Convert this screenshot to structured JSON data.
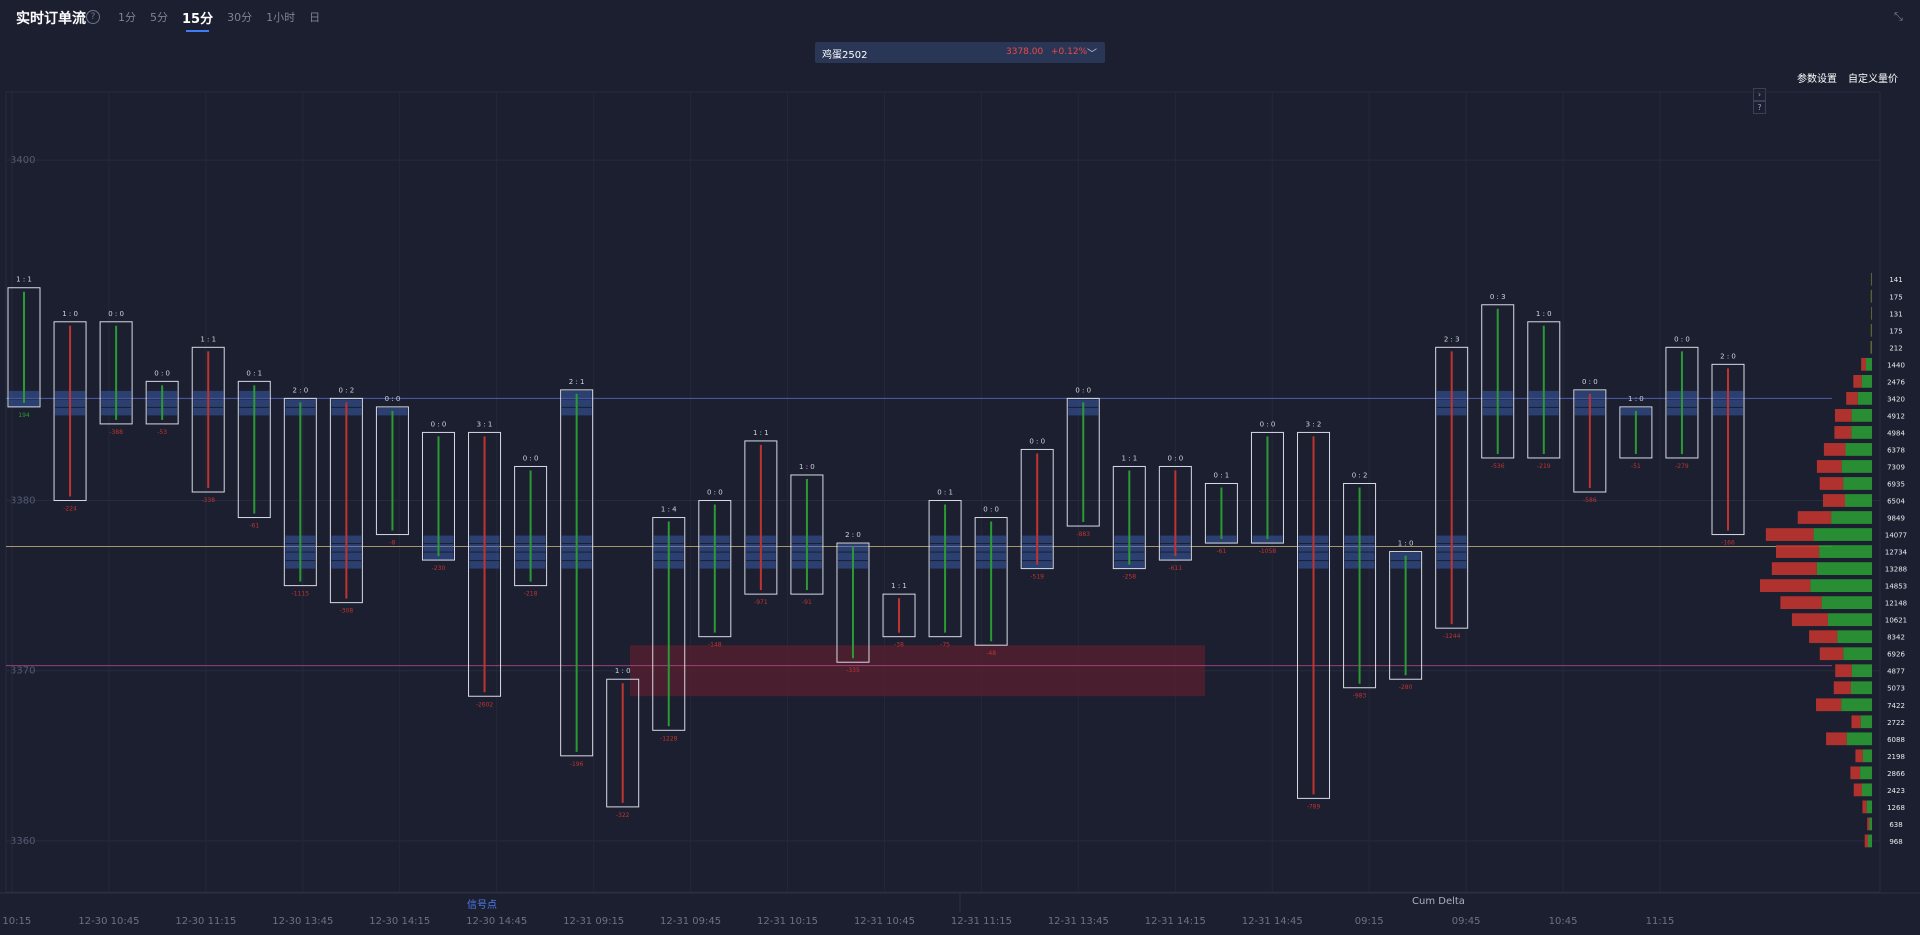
{
  "header": {
    "title": "实时订单流",
    "help_icon": "help-circle-icon",
    "tabs": [
      {
        "label": "1分",
        "active": false
      },
      {
        "label": "5分",
        "active": false
      },
      {
        "label": "15分",
        "active": true
      },
      {
        "label": "30分",
        "active": false
      },
      {
        "label": "1小时",
        "active": false
      },
      {
        "label": "日",
        "active": false
      }
    ],
    "collapse_icon": "collapse-icon"
  },
  "symbol": {
    "name": "鸡蛋2502",
    "price": "3378.00",
    "change": "+0.12%",
    "chevron_icon": "chevron-down-icon"
  },
  "toolbar": {
    "settings_label": "参数设置",
    "custom_label": "自定义量价"
  },
  "bottom_tabs": {
    "signal": "信号点",
    "cum_delta": "Cum Delta"
  },
  "colors": {
    "background": "#1b1f30",
    "buy": "#2b9a34",
    "sell": "#c0342f",
    "highlight": "#3a5aa8",
    "signal_zone": "#5a1f2d"
  },
  "chart_data": {
    "type": "footprint",
    "y_ticks": [
      3400,
      3380,
      3370,
      3360
    ],
    "y_range": [
      3357,
      3404
    ],
    "x_ticks": [
      "0 10:15",
      "12-30 10:45",
      "12-30 11:15",
      "12-30 13:45",
      "12-30 14:15",
      "12-30 14:45",
      "12-31 09:15",
      "12-31 09:45",
      "12-31 10:15",
      "12-31 10:45",
      "12-31 11:15",
      "12-31 13:45",
      "12-31 14:15",
      "12-31 14:45",
      "09:15",
      "09:45",
      "10:45",
      "11:15"
    ],
    "reference_lines": [
      {
        "price": 3386.0,
        "color": "#5b6ec7"
      },
      {
        "price": 3377.3,
        "color": "#c9b37a"
      },
      {
        "price": 3370.3,
        "color": "#b24a8c"
      }
    ],
    "signal_zone": {
      "from": 3368.5,
      "to": 3371.5
    },
    "bars": [
      {
        "hi": 3392.5,
        "lo": 3385.5,
        "imb": "1 : 1",
        "delta": "194"
      },
      {
        "hi": 3390.5,
        "lo": 3380.0,
        "imb": "1 : 0",
        "delta": "-224"
      },
      {
        "hi": 3390.5,
        "lo": 3384.5,
        "imb": "0 : 0",
        "delta": "-388"
      },
      {
        "hi": 3387.0,
        "lo": 3384.5,
        "imb": "0 : 0",
        "delta": "-53"
      },
      {
        "hi": 3389.0,
        "lo": 3380.5,
        "imb": "1 : 1",
        "delta": "-338"
      },
      {
        "hi": 3387.0,
        "lo": 3379.0,
        "imb": "0 : 1",
        "delta": "-61"
      },
      {
        "hi": 3386.0,
        "lo": 3375.0,
        "imb": "2 : 0",
        "delta": "-1115"
      },
      {
        "hi": 3386.0,
        "lo": 3374.0,
        "imb": "0 : 2",
        "delta": "-308"
      },
      {
        "hi": 3385.5,
        "lo": 3378.0,
        "imb": "0 : 0",
        "delta": "-8"
      },
      {
        "hi": 3384.0,
        "lo": 3376.5,
        "imb": "0 : 0",
        "delta": "-230"
      },
      {
        "hi": 3384.0,
        "lo": 3368.5,
        "imb": "3 : 1",
        "delta": "-2602"
      },
      {
        "hi": 3382.0,
        "lo": 3375.0,
        "imb": "0 : 0",
        "delta": "-218"
      },
      {
        "hi": 3386.5,
        "lo": 3365.0,
        "imb": "2 : 1",
        "delta": "-196"
      },
      {
        "hi": 3369.5,
        "lo": 3362.0,
        "imb": "1 : 0",
        "delta": "-322"
      },
      {
        "hi": 3379.0,
        "lo": 3366.5,
        "imb": "1 : 4",
        "delta": "-1228"
      },
      {
        "hi": 3380.0,
        "lo": 3372.0,
        "imb": "0 : 0",
        "delta": "-148"
      },
      {
        "hi": 3383.5,
        "lo": 3374.5,
        "imb": "1 : 1",
        "delta": "-971"
      },
      {
        "hi": 3381.5,
        "lo": 3374.5,
        "imb": "1 : 0",
        "delta": "-91"
      },
      {
        "hi": 3377.5,
        "lo": 3370.5,
        "imb": "2 : 0",
        "delta": "-335"
      },
      {
        "hi": 3374.5,
        "lo": 3372.0,
        "imb": "1 : 1",
        "delta": "-38"
      },
      {
        "hi": 3380.0,
        "lo": 3372.0,
        "imb": "0 : 1",
        "delta": "-75"
      },
      {
        "hi": 3379.0,
        "lo": 3371.5,
        "imb": "0 : 0",
        "delta": "-48"
      },
      {
        "hi": 3383.0,
        "lo": 3376.0,
        "imb": "0 : 0",
        "delta": "-519"
      },
      {
        "hi": 3386.0,
        "lo": 3378.5,
        "imb": "0 : 0",
        "delta": "-883"
      },
      {
        "hi": 3382.0,
        "lo": 3376.0,
        "imb": "1 : 1",
        "delta": "-258"
      },
      {
        "hi": 3382.0,
        "lo": 3376.5,
        "imb": "0 : 0",
        "delta": "-611"
      },
      {
        "hi": 3381.0,
        "lo": 3377.5,
        "imb": "0 : 1",
        "delta": "-61"
      },
      {
        "hi": 3384.0,
        "lo": 3377.5,
        "imb": "0 : 0",
        "delta": "-1058"
      },
      {
        "hi": 3384.0,
        "lo": 3362.5,
        "imb": "3 : 2",
        "delta": "-789"
      },
      {
        "hi": 3381.0,
        "lo": 3369.0,
        "imb": "0 : 2",
        "delta": "-983"
      },
      {
        "hi": 3377.0,
        "lo": 3369.5,
        "imb": "1 : 0",
        "delta": "-280"
      },
      {
        "hi": 3389.0,
        "lo": 3372.5,
        "imb": "2 : 3",
        "delta": "-1244"
      },
      {
        "hi": 3391.5,
        "lo": 3382.5,
        "imb": "0 : 3",
        "delta": "-536"
      },
      {
        "hi": 3390.5,
        "lo": 3382.5,
        "imb": "1 : 0",
        "delta": "-219"
      },
      {
        "hi": 3386.5,
        "lo": 3380.5,
        "imb": "0 : 0",
        "delta": "-586"
      },
      {
        "hi": 3385.5,
        "lo": 3382.5,
        "imb": "1 : 0",
        "delta": "-51"
      },
      {
        "hi": 3389.0,
        "lo": 3382.5,
        "imb": "0 : 0",
        "delta": "-279"
      },
      {
        "hi": 3388.0,
        "lo": 3378.0,
        "imb": "2 : 0",
        "delta": "-166"
      }
    ],
    "volume_profile": [
      {
        "price": 3393,
        "total": 141
      },
      {
        "price": 3392,
        "total": 175
      },
      {
        "price": 3391,
        "total": 131
      },
      {
        "price": 3390,
        "total": 175
      },
      {
        "price": 3389,
        "total": 212
      },
      {
        "price": 3388,
        "total": 1440
      },
      {
        "price": 3387,
        "total": 2476
      },
      {
        "price": 3386,
        "total": 3420
      },
      {
        "price": 3385,
        "total": 4912
      },
      {
        "price": 3384,
        "total": 4984
      },
      {
        "price": 3383,
        "total": 6378
      },
      {
        "price": 3382,
        "total": 7309
      },
      {
        "price": 3381,
        "total": 6935
      },
      {
        "price": 3380,
        "total": 6504
      },
      {
        "price": 3379,
        "total": 9849
      },
      {
        "price": 3378,
        "total": 14077
      },
      {
        "price": 3377,
        "total": 12734
      },
      {
        "price": 3376,
        "total": 13288
      },
      {
        "price": 3375,
        "total": 14853
      },
      {
        "price": 3374,
        "total": 12148
      },
      {
        "price": 3373,
        "total": 10621
      },
      {
        "price": 3372,
        "total": 8342
      },
      {
        "price": 3371,
        "total": 6926
      },
      {
        "price": 3370,
        "total": 4877
      },
      {
        "price": 3369,
        "total": 5073
      },
      {
        "price": 3368,
        "total": 7422
      },
      {
        "price": 3367,
        "total": 2722
      },
      {
        "price": 3366,
        "total": 6088
      },
      {
        "price": 3365,
        "total": 2198
      },
      {
        "price": 3364,
        "total": 2866
      },
      {
        "price": 3363,
        "total": 2423
      },
      {
        "price": 3362,
        "total": 1268
      },
      {
        "price": 3361,
        "total": 638
      },
      {
        "price": 3360,
        "total": 968
      }
    ]
  }
}
